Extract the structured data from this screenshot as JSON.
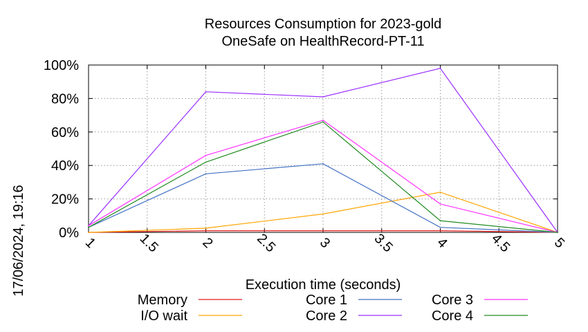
{
  "chart_data": {
    "type": "line",
    "title": "Resources Consumption for 2023-gold",
    "subtitle": "OneSafe on HealthRecord-PT-11",
    "xlabel": "Execution time (seconds)",
    "ylabel": "",
    "side_label": "17/06/2024, 19:16",
    "xlim": [
      1,
      5
    ],
    "ylim": [
      0,
      100
    ],
    "x_ticks": [
      1,
      1.5,
      2,
      2.5,
      3,
      3.5,
      4,
      4.5,
      5
    ],
    "x_tick_labels": [
      "1",
      "1.5",
      "2",
      "2.5",
      "3",
      "3.5",
      "4",
      "4.5",
      "5"
    ],
    "y_ticks": [
      0,
      20,
      40,
      60,
      80,
      100
    ],
    "y_tick_labels": [
      "0%",
      "20%",
      "40%",
      "60%",
      "80%",
      "100%"
    ],
    "grid": true,
    "legend_position": "bottom",
    "x": [
      1,
      2,
      3,
      4,
      5
    ],
    "series": [
      {
        "name": "Memory",
        "color": "#e41a1c",
        "values": [
          0,
          1,
          1,
          1,
          0
        ]
      },
      {
        "name": "I/O wait",
        "color": "#ffa500",
        "values": [
          0,
          2.5,
          11,
          24,
          0
        ]
      },
      {
        "name": "Core 1",
        "color": "#4472c4",
        "values": [
          3,
          35,
          41,
          3,
          0
        ]
      },
      {
        "name": "Core 2",
        "color": "#9b30ff",
        "values": [
          4,
          84,
          81,
          98,
          0
        ]
      },
      {
        "name": "Core 3",
        "color": "#ff33ff",
        "values": [
          4,
          46,
          67,
          17,
          0
        ]
      },
      {
        "name": "Core 4",
        "color": "#228b22",
        "values": [
          3,
          42,
          66,
          7,
          0
        ]
      }
    ]
  }
}
